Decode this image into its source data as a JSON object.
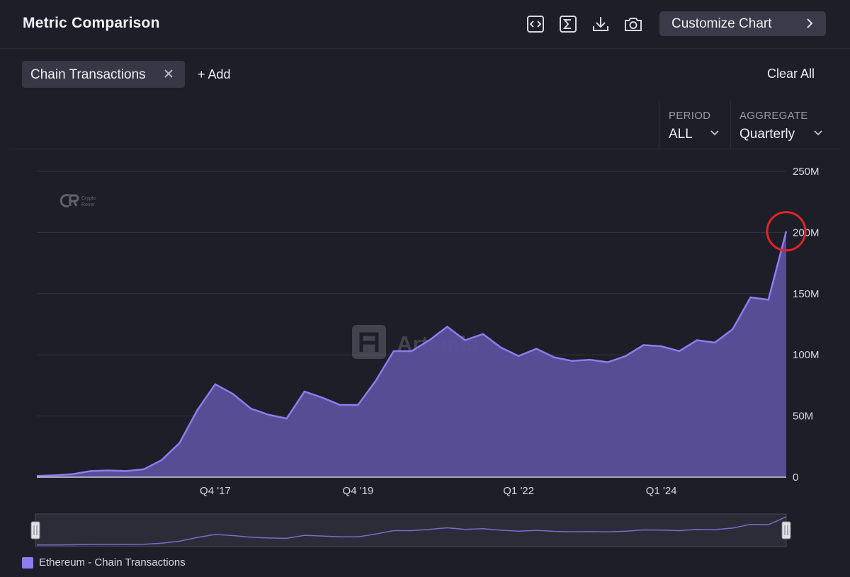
{
  "header": {
    "title": "Metric Comparison",
    "customize_label": "Customize Chart",
    "tools": [
      "code-icon",
      "sigma-icon",
      "download-icon",
      "camera-icon"
    ]
  },
  "metrics": {
    "chip_label": "Chain Transactions",
    "add_label": "+ Add",
    "clear_label": "Clear All"
  },
  "controls": {
    "period_label": "PERIOD",
    "period_value": "ALL",
    "aggregate_label": "AGGREGATE",
    "aggregate_value": "Quarterly"
  },
  "watermark": {
    "brand": "Artemis",
    "small_logo_line1": "Crypto",
    "small_logo_line2": "Rover"
  },
  "colors": {
    "background": "#1e1e28",
    "series": "#8a7ef0",
    "area_fill": "#5a509a",
    "highlight_circle": "#e0242a"
  },
  "chart_data": {
    "type": "area",
    "y_ticks": [
      "0",
      "50M",
      "100M",
      "150M",
      "200M",
      "250M"
    ],
    "ylim": [
      0,
      250000000
    ],
    "x_tick_labels": [
      "Q4 '17",
      "Q4 '19",
      "Q1 '22",
      "Q1 '24"
    ],
    "x_tick_quarter_index": [
      10,
      18,
      27,
      35
    ],
    "grid": true,
    "legend": "bottom-left",
    "series": [
      {
        "name": "Ethereum - Chain Transactions",
        "values": [
          1000000,
          1500000,
          2500000,
          5000000,
          5500000,
          5000000,
          6500000,
          14000000,
          28000000,
          55000000,
          76000000,
          68000000,
          56000000,
          51000000,
          48000000,
          70000000,
          65000000,
          59000000,
          59000000,
          79000000,
          103000000,
          103000000,
          112000000,
          123000000,
          112000000,
          117000000,
          106000000,
          99000000,
          105000000,
          98000000,
          95000000,
          96000000,
          94000000,
          99000000,
          108000000,
          107000000,
          103000000,
          112000000,
          110000000,
          121000000,
          147000000,
          145000000,
          201000000
        ]
      }
    ],
    "annotation": "highlight circle on latest value"
  },
  "legend": {
    "items": [
      "Ethereum - Chain Transactions"
    ]
  }
}
